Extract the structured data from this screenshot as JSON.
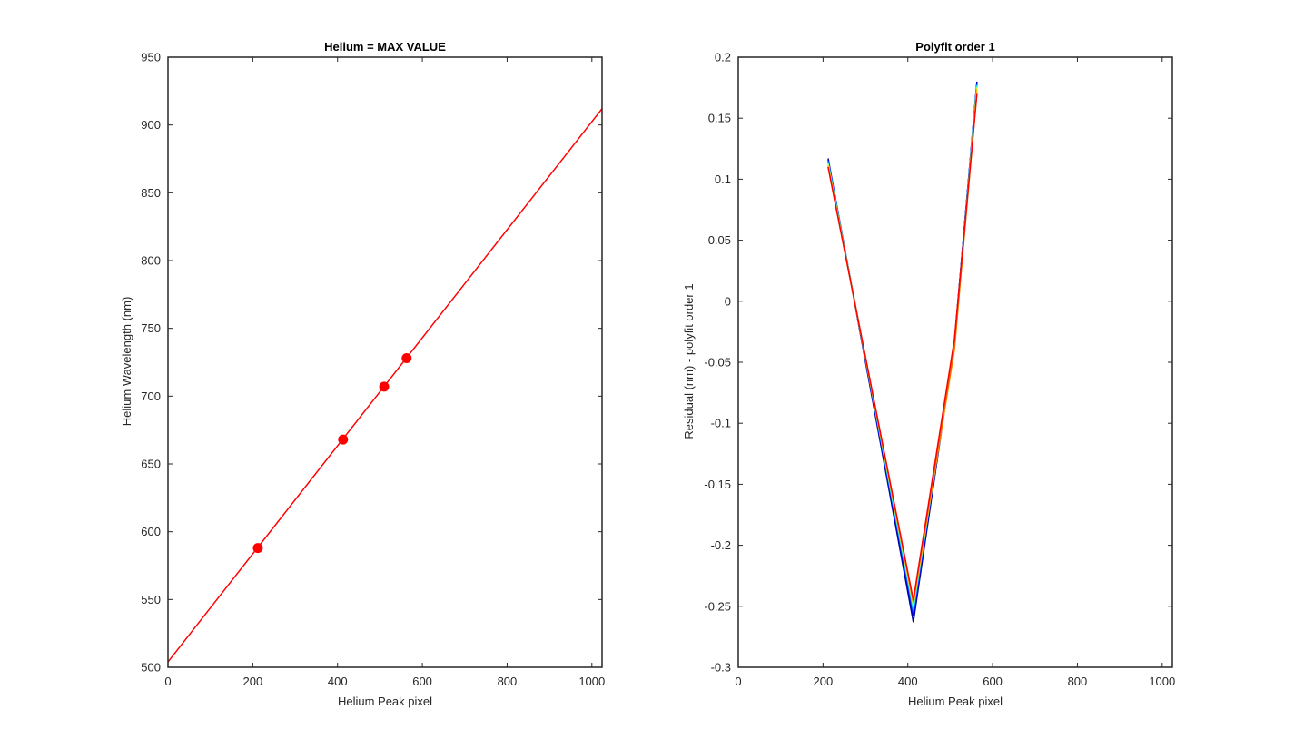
{
  "chart_data": [
    {
      "type": "line",
      "title": "Helium = MAX VALUE",
      "xlabel": "Helium Peak pixel",
      "ylabel": "Helium Wavelength (nm)",
      "xlim": [
        0,
        1024
      ],
      "ylim": [
        500,
        950
      ],
      "xticks": [
        0,
        200,
        400,
        600,
        800,
        1000
      ],
      "yticks": [
        500,
        550,
        600,
        650,
        700,
        750,
        800,
        850,
        900,
        950
      ],
      "grid": false,
      "series": [
        {
          "kind": "line",
          "color": "#ff0000",
          "x": [
            0,
            1024
          ],
          "y": [
            504,
            912
          ]
        },
        {
          "kind": "markers",
          "color": "#ff0000",
          "x": [
            212,
            413,
            510,
            563
          ],
          "y": [
            588,
            668,
            707,
            728
          ]
        }
      ]
    },
    {
      "type": "line",
      "title": "Polyfit order 1",
      "xlabel": "Helium Peak pixel",
      "ylabel": "Residual (nm) - polyfit order 1",
      "xlim": [
        0,
        1024
      ],
      "ylim": [
        -0.3,
        0.2
      ],
      "xticks": [
        0,
        200,
        400,
        600,
        800,
        1000
      ],
      "yticks": [
        -0.3,
        -0.25,
        -0.2,
        -0.15,
        -0.1,
        -0.05,
        0,
        0.05,
        0.1,
        0.15,
        0.2
      ],
      "grid": false,
      "series": [
        {
          "color": "#0000a0",
          "x": [
            212,
            413,
            510,
            563
          ],
          "y": [
            0.117,
            -0.263,
            -0.034,
            0.18
          ]
        },
        {
          "color": "#0000ff",
          "x": [
            212,
            413,
            510,
            563
          ],
          "y": [
            0.116,
            -0.258,
            -0.033,
            0.179
          ]
        },
        {
          "color": "#0060ff",
          "x": [
            212,
            413,
            510,
            563
          ],
          "y": [
            0.115,
            -0.255,
            -0.034,
            0.178
          ]
        },
        {
          "color": "#00c0ff",
          "x": [
            212,
            413,
            510,
            563
          ],
          "y": [
            0.114,
            -0.253,
            -0.035,
            0.177
          ]
        },
        {
          "color": "#40ffc0",
          "x": [
            212,
            413,
            510,
            563
          ],
          "y": [
            0.113,
            -0.251,
            -0.036,
            0.176
          ]
        },
        {
          "color": "#c0ff40",
          "x": [
            212,
            413,
            510,
            563
          ],
          "y": [
            0.112,
            -0.249,
            -0.038,
            0.175
          ]
        },
        {
          "color": "#ffc000",
          "x": [
            212,
            413,
            510,
            563
          ],
          "y": [
            0.111,
            -0.248,
            -0.04,
            0.174
          ]
        },
        {
          "color": "#ff6000",
          "x": [
            212,
            413,
            510,
            563
          ],
          "y": [
            0.11,
            -0.246,
            -0.038,
            0.171
          ]
        },
        {
          "color": "#ff0000",
          "x": [
            212,
            413,
            510,
            563
          ],
          "y": [
            0.11,
            -0.245,
            -0.031,
            0.17
          ]
        }
      ]
    }
  ]
}
